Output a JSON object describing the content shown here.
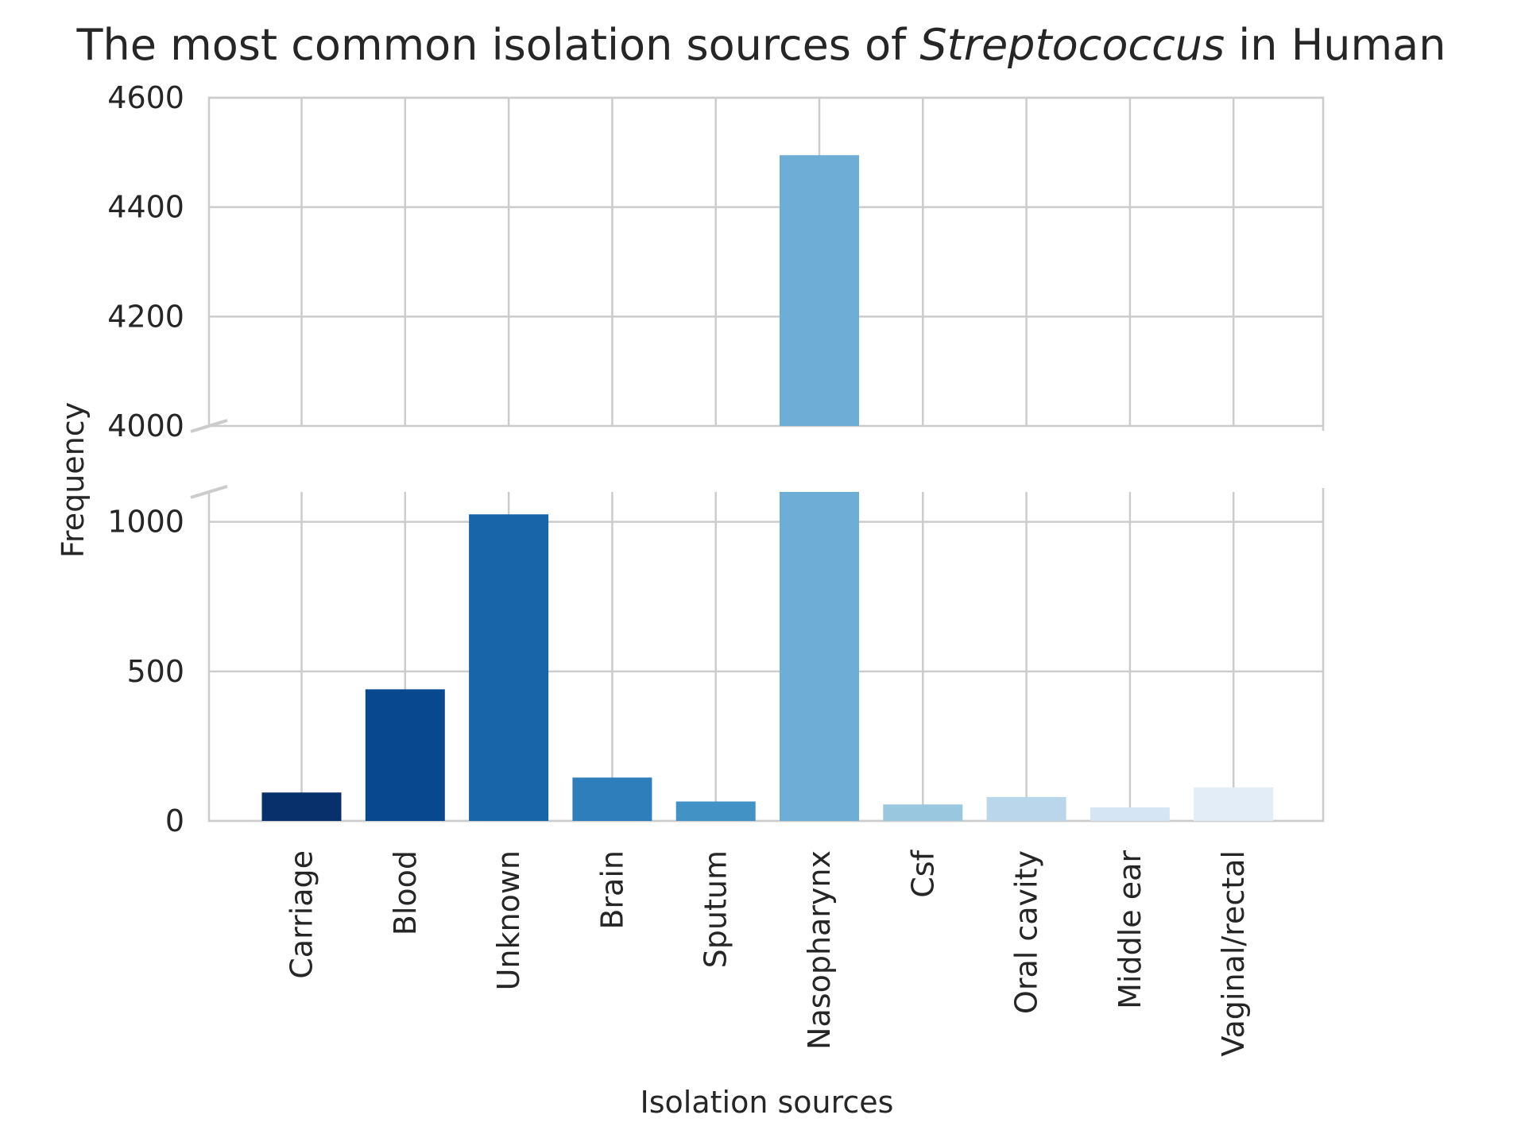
{
  "chart_data": {
    "type": "bar",
    "title_parts": [
      {
        "text": "The most common isolation sources of ",
        "italic": false
      },
      {
        "text": "Streptococcus",
        "italic": true
      },
      {
        "text": " in Human",
        "italic": false
      }
    ],
    "xlabel": "Isolation sources",
    "ylabel": "Frequency",
    "categories": [
      "Carriage",
      "Blood",
      "Unknown",
      "Brain",
      "Sputum",
      "Nasopharynx",
      "Csf",
      "Oral cavity",
      "Middle ear",
      "Vaginal/rectal"
    ],
    "values": [
      95,
      440,
      1025,
      145,
      65,
      4495,
      55,
      80,
      45,
      112
    ],
    "colors": [
      "#08306b",
      "#08488e",
      "#1965aa",
      "#2e7ebc",
      "#4392c6",
      "#6dadd6",
      "#99c7e0",
      "#bad6eb",
      "#d5e5f4",
      "#e2edf8"
    ],
    "broken_axis": true,
    "upper_ylim": [
      4000,
      4600
    ],
    "lower_ylim": [
      0,
      1100
    ],
    "upper_yticks": [
      4000,
      4200,
      4400,
      4600
    ],
    "lower_yticks": [
      0,
      500,
      1000
    ],
    "grid": true
  }
}
